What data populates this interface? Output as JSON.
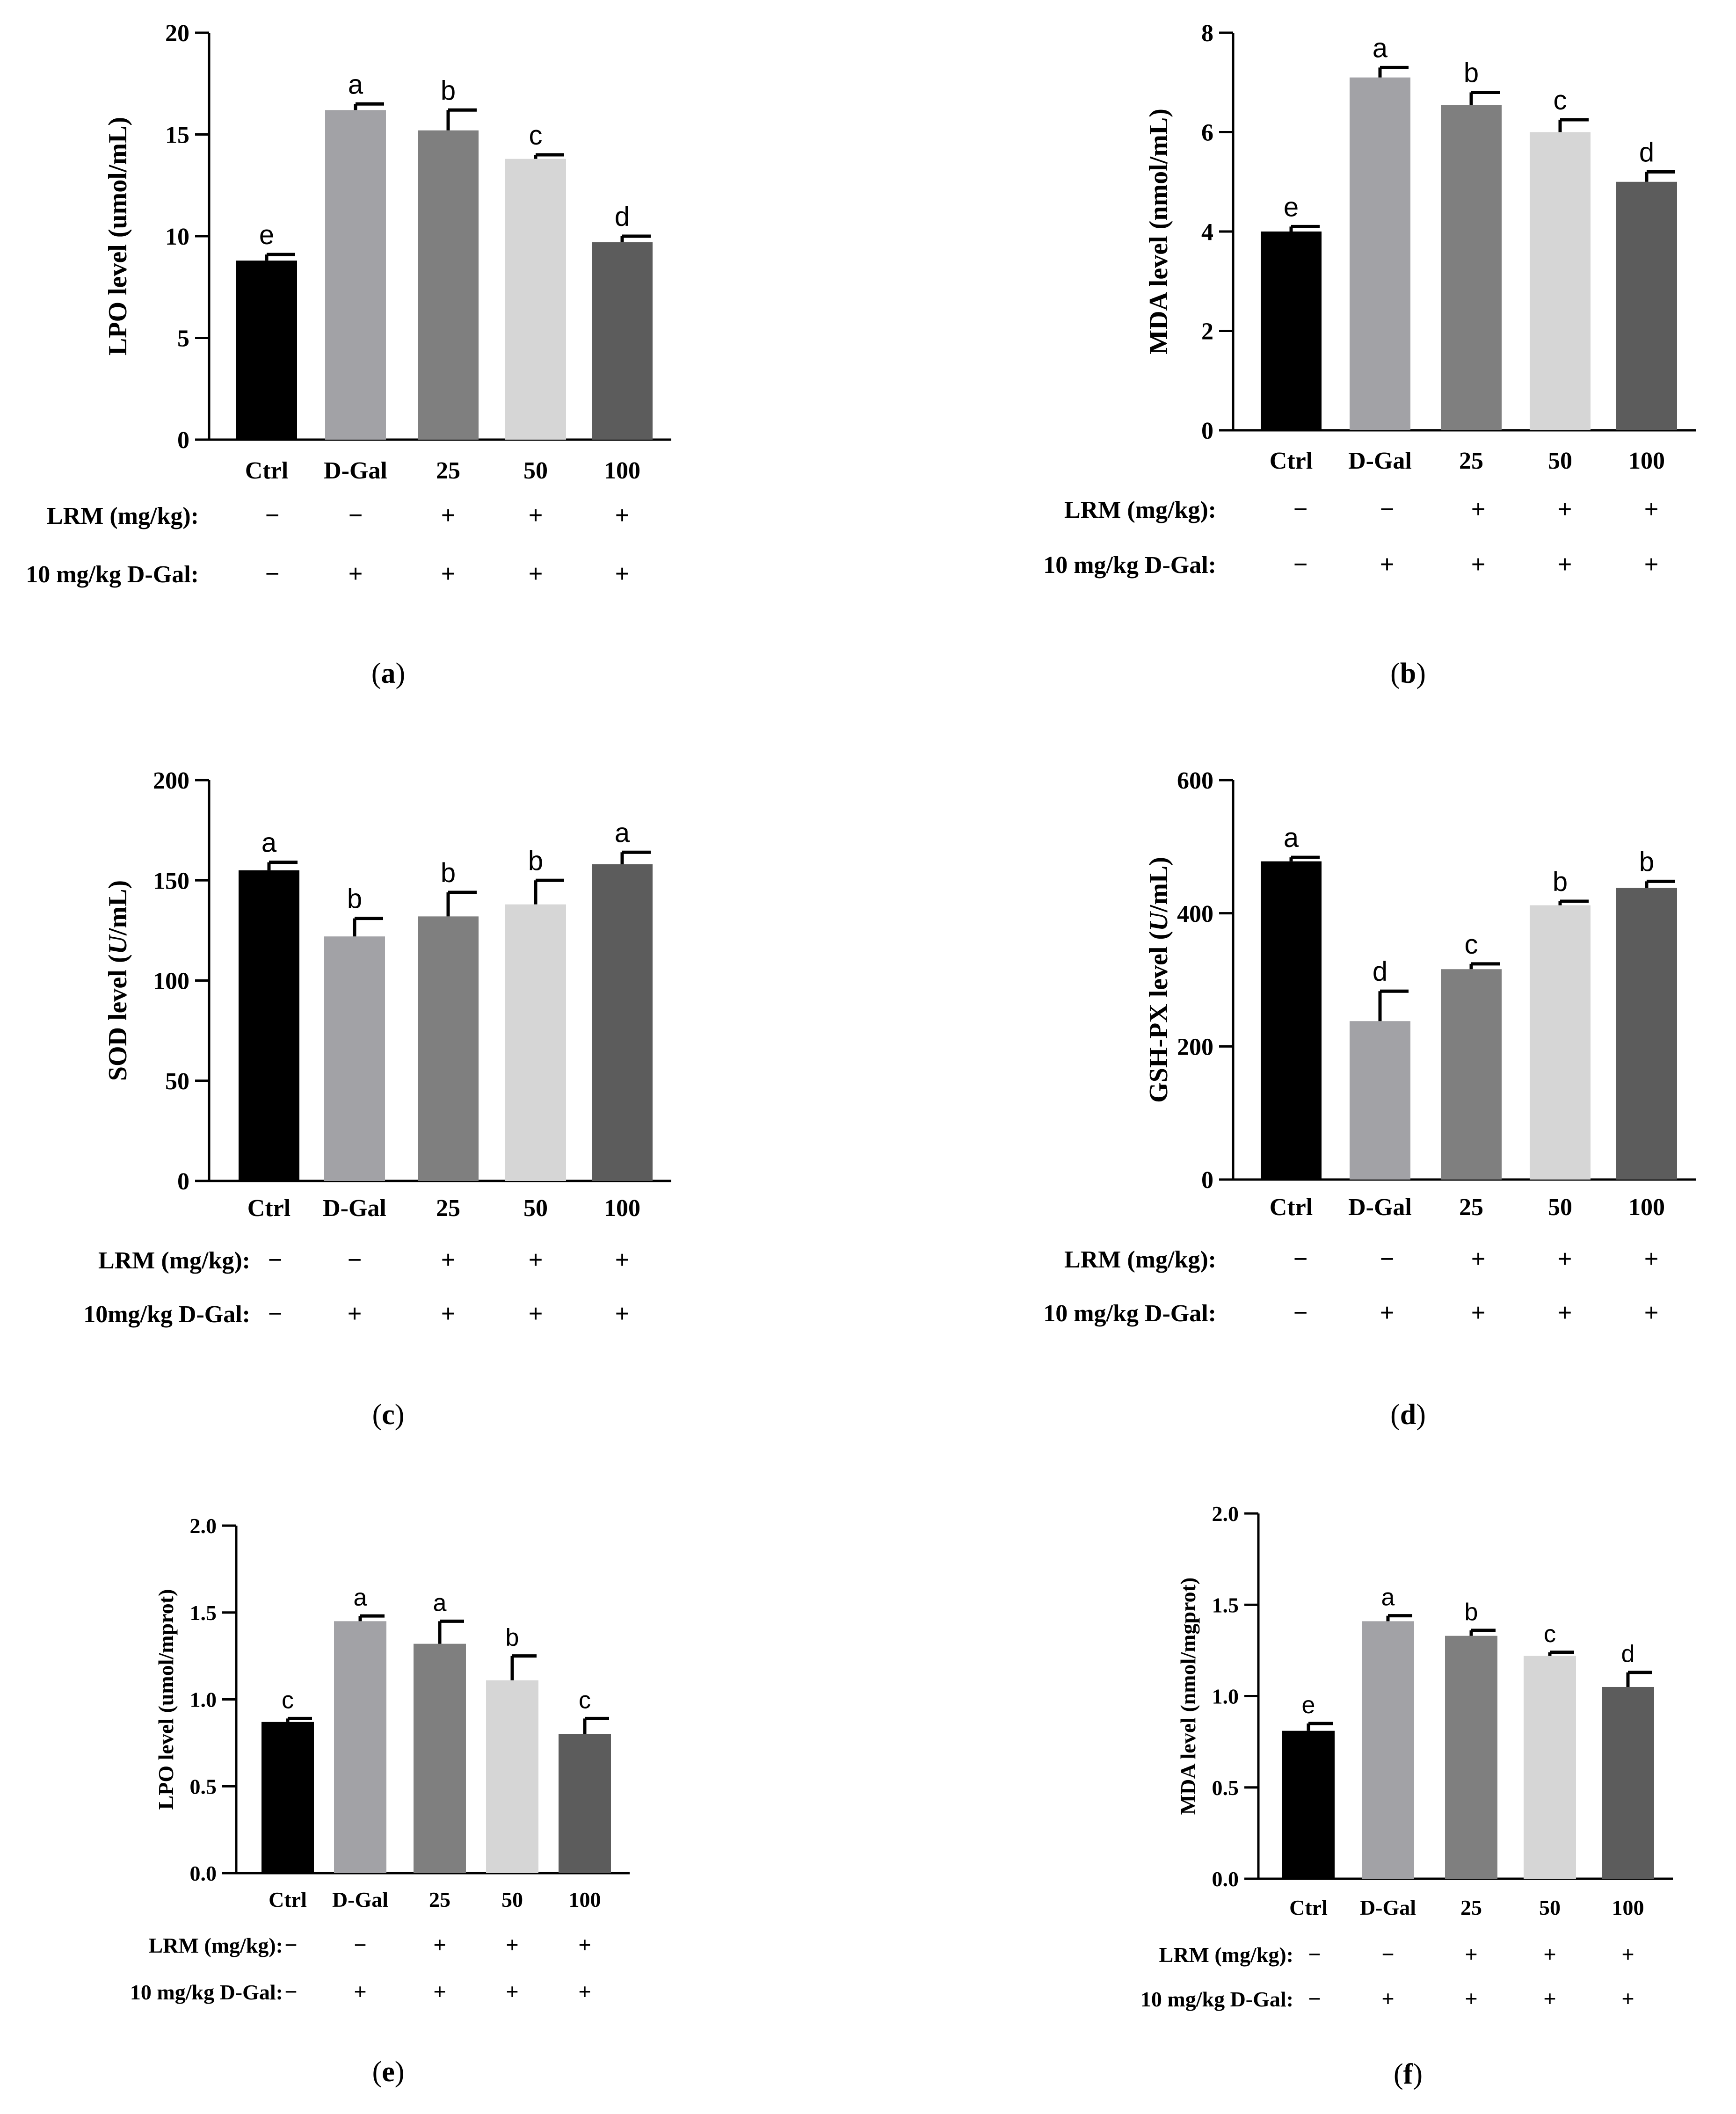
{
  "chart_data": [
    {
      "type": "bar",
      "panel": "(a)",
      "panel_letter": "a",
      "ylabel": "LPO level (umol/mL)",
      "categories": [
        "Ctrl",
        "D-Gal",
        "25",
        "50",
        "100"
      ],
      "values": [
        8.8,
        16.2,
        15.2,
        13.8,
        9.7
      ],
      "errors": [
        0.3,
        0.3,
        1.0,
        0.2,
        0.3
      ],
      "significance": [
        "e",
        "a",
        "b",
        "c",
        "d"
      ],
      "ylim": [
        0,
        20
      ],
      "yticks": [
        "0",
        "5",
        "10",
        "15",
        "20"
      ],
      "row1_label": "LRM (mg/kg):",
      "row1_signs": [
        "−",
        "−",
        "+",
        "+",
        "+"
      ],
      "row2_label": "10 mg/kg D-Gal:",
      "row2_signs": [
        "−",
        "+",
        "+",
        "+",
        "+"
      ]
    },
    {
      "type": "bar",
      "panel": "(b)",
      "panel_letter": "b",
      "ylabel": "MDA level (nmol/mL)",
      "categories": [
        "Ctrl",
        "D-Gal",
        "25",
        "50",
        "100"
      ],
      "values": [
        4.0,
        7.1,
        6.55,
        6.0,
        5.0
      ],
      "errors": [
        0.1,
        0.2,
        0.25,
        0.25,
        0.2
      ],
      "significance": [
        "e",
        "a",
        "b",
        "c",
        "d"
      ],
      "ylim": [
        0,
        8
      ],
      "yticks": [
        "0",
        "2",
        "4",
        "6",
        "8"
      ],
      "row1_label": "LRM (mg/kg):",
      "row1_signs": [
        "−",
        "−",
        "+",
        "+",
        "+"
      ],
      "row2_label": "10 mg/kg D-Gal:",
      "row2_signs": [
        "−",
        "+",
        "+",
        "+",
        "+"
      ]
    },
    {
      "type": "bar",
      "panel": "(c)",
      "panel_letter": "c",
      "ylabel": "SOD level (U/mL)",
      "ylabel_parts": [
        "SOD level (",
        "U",
        "/mL)"
      ],
      "categories": [
        "Ctrl",
        "D-Gal",
        "25",
        "50",
        "100"
      ],
      "values": [
        155,
        122,
        132,
        138,
        158
      ],
      "errors": [
        4,
        9,
        12,
        12,
        6
      ],
      "significance": [
        "a",
        "b",
        "b",
        "b",
        "a"
      ],
      "ylim": [
        0,
        200
      ],
      "yticks": [
        "0",
        "50",
        "100",
        "150",
        "200"
      ],
      "row1_label": "LRM (mg/kg):",
      "row1_signs": [
        "−",
        "−",
        "+",
        "+",
        "+"
      ],
      "row2_label": "10mg/kg D-Gal:",
      "row2_signs": [
        "−",
        "+",
        "+",
        "+",
        "+"
      ]
    },
    {
      "type": "bar",
      "panel": "(d)",
      "panel_letter": "d",
      "ylabel": "GSH-PX level (U/mL)",
      "ylabel_parts": [
        "GSH-PX level (",
        "U",
        "/mL)"
      ],
      "categories": [
        "Ctrl",
        "D-Gal",
        "25",
        "50",
        "100"
      ],
      "values": [
        478,
        238,
        316,
        412,
        438
      ],
      "errors": [
        6,
        45,
        8,
        6,
        10
      ],
      "significance": [
        "a",
        "d",
        "c",
        "b",
        "b"
      ],
      "ylim": [
        0,
        600
      ],
      "yticks": [
        "0",
        "200",
        "400",
        "600"
      ],
      "row1_label": "LRM (mg/kg):",
      "row1_signs": [
        "−",
        "−",
        "+",
        "+",
        "+"
      ],
      "row2_label": "10 mg/kg D-Gal:",
      "row2_signs": [
        "−",
        "+",
        "+",
        "+",
        "+"
      ]
    },
    {
      "type": "bar",
      "panel": "(e)",
      "panel_letter": "e",
      "ylabel": "LPO level (umol/mprot)",
      "categories": [
        "Ctrl",
        "D-Gal",
        "25",
        "50",
        "100"
      ],
      "values": [
        0.87,
        1.45,
        1.32,
        1.11,
        0.8
      ],
      "errors": [
        0.02,
        0.03,
        0.13,
        0.14,
        0.09
      ],
      "significance": [
        "c",
        "a",
        "a",
        "b",
        "c"
      ],
      "ylim": [
        0,
        2.0
      ],
      "yticks": [
        "0.0",
        "0.5",
        "1.0",
        "1.5",
        "2.0"
      ],
      "row1_label": "LRM (mg/kg):",
      "row1_signs": [
        "−",
        "−",
        "+",
        "+",
        "+"
      ],
      "row2_label": "10 mg/kg D-Gal:",
      "row2_signs": [
        "−",
        "+",
        "+",
        "+",
        "+"
      ]
    },
    {
      "type": "bar",
      "panel": "(f)",
      "panel_letter": "f",
      "ylabel": "MDA level (nmol/mgprot)",
      "categories": [
        "Ctrl",
        "D-Gal",
        "25",
        "50",
        "100"
      ],
      "values": [
        0.81,
        1.41,
        1.33,
        1.22,
        1.05
      ],
      "errors": [
        0.04,
        0.03,
        0.03,
        0.02,
        0.08
      ],
      "significance": [
        "e",
        "a",
        "b",
        "c",
        "d"
      ],
      "ylim": [
        0,
        2.0
      ],
      "yticks": [
        "0.0",
        "0.5",
        "1.0",
        "1.5",
        "2.0"
      ],
      "row1_label": "LRM (mg/kg):",
      "row1_signs": [
        "−",
        "−",
        "+",
        "+",
        "+"
      ],
      "row2_label": "10 mg/kg D-Gal:",
      "row2_signs": [
        "−",
        "+",
        "+",
        "+",
        "+"
      ]
    }
  ],
  "bar_colors": [
    "#000000",
    "#a2a2a6",
    "#7f7f7f",
    "#d6d6d6",
    "#5c5c5c"
  ]
}
